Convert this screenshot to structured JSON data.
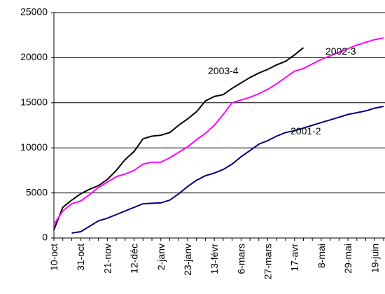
{
  "chart_data": {
    "type": "line",
    "categories": [
      "10-oct",
      null,
      null,
      "31-oct",
      null,
      null,
      "21-nov",
      null,
      null,
      "12-déc",
      null,
      null,
      "2-janv",
      null,
      null,
      "23-janv",
      null,
      null,
      "13-févr",
      null,
      null,
      "6-mars",
      null,
      null,
      "27-mars",
      null,
      null,
      "17-avr",
      null,
      null,
      "8-mai",
      null,
      null,
      "29-mai",
      null,
      null,
      "19-juin",
      null
    ],
    "series": [
      {
        "name": "2003-4",
        "color": "#000000",
        "values": [
          900,
          3400,
          4200,
          4900,
          5400,
          5800,
          6500,
          7500,
          8700,
          9600,
          11000,
          11300,
          11400,
          11700,
          12500,
          13200,
          14000,
          15200,
          15700,
          15900,
          16600,
          17200,
          17800,
          18300,
          18700,
          19200,
          19600,
          20300,
          21100,
          null,
          null,
          null,
          null,
          null,
          null,
          null,
          null,
          null
        ]
      },
      {
        "name": "2002-3",
        "color": "#ff00ff",
        "values": [
          1500,
          3000,
          3800,
          4100,
          4800,
          5600,
          6200,
          6800,
          7100,
          7500,
          8200,
          8400,
          8400,
          8900,
          9500,
          10100,
          10900,
          11600,
          12500,
          13700,
          15000,
          15300,
          15600,
          16000,
          16500,
          17100,
          17800,
          18500,
          18800,
          19300,
          19800,
          20200,
          20600,
          21000,
          21400,
          21700,
          22000,
          22200
        ]
      },
      {
        "name": "2001-2",
        "color": "#000080",
        "values": [
          null,
          null,
          550,
          700,
          1300,
          1900,
          2200,
          2600,
          3000,
          3400,
          3800,
          3850,
          3900,
          4200,
          4900,
          5700,
          6400,
          6900,
          7200,
          7600,
          8200,
          9000,
          9700,
          10400,
          10800,
          11300,
          11700,
          11900,
          12200,
          12500,
          12800,
          13100,
          13400,
          13700,
          13900,
          14100,
          14400,
          14600
        ]
      }
    ],
    "ylim": [
      0,
      25000
    ],
    "yticks": [
      0,
      5000,
      10000,
      15000,
      20000,
      25000
    ],
    "grid": true
  }
}
